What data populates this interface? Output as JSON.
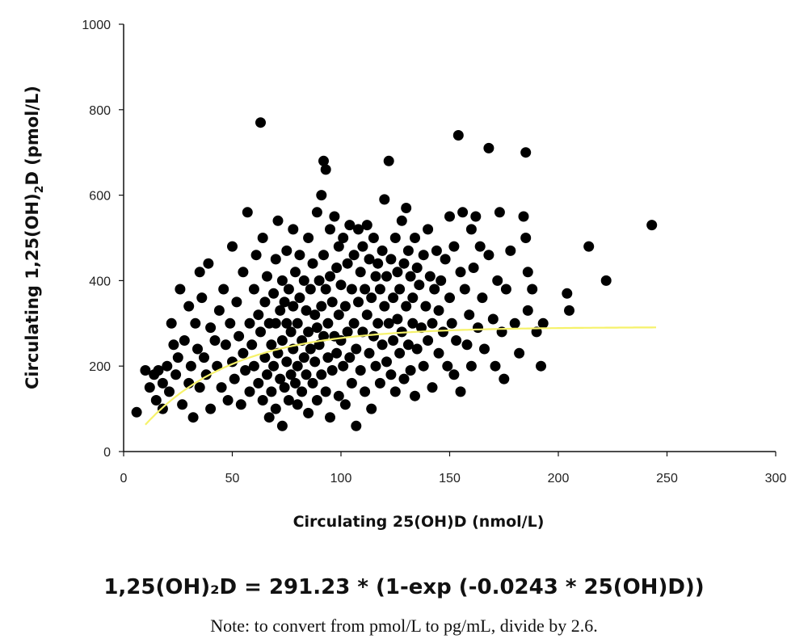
{
  "chart_data": {
    "type": "scatter",
    "xlabel": "Circulating 25(OH)D (nmol/L)",
    "ylabel": "Circulating 1,25(OH)2D (pmol/L)",
    "xlim": [
      0,
      300
    ],
    "ylim": [
      0,
      1000
    ],
    "x_ticks": [
      "0",
      "50",
      "100",
      "150",
      "200",
      "250",
      "300"
    ],
    "y_ticks": [
      "0",
      "200",
      "400",
      "600",
      "800",
      "1000"
    ],
    "grid": false,
    "legend": "none",
    "marker_color": "#000000",
    "fit_line_color": "#f6f26a",
    "fit": {
      "label": "1,25(OH)2D = 291.23 * (1-exp (-0.0243 * 25(OH)D))",
      "a": 291.23,
      "k": 0.0243,
      "x_range": [
        10,
        245
      ]
    },
    "series": [
      {
        "points": [
          [
            6,
            92
          ],
          [
            10,
            190
          ],
          [
            12,
            150
          ],
          [
            14,
            180
          ],
          [
            15,
            120
          ],
          [
            16,
            190
          ],
          [
            18,
            100
          ],
          [
            18,
            160
          ],
          [
            20,
            200
          ],
          [
            21,
            140
          ],
          [
            22,
            300
          ],
          [
            23,
            250
          ],
          [
            24,
            180
          ],
          [
            25,
            220
          ],
          [
            26,
            380
          ],
          [
            27,
            110
          ],
          [
            28,
            260
          ],
          [
            30,
            340
          ],
          [
            30,
            160
          ],
          [
            31,
            200
          ],
          [
            32,
            80
          ],
          [
            33,
            300
          ],
          [
            34,
            240
          ],
          [
            35,
            420
          ],
          [
            35,
            150
          ],
          [
            36,
            360
          ],
          [
            37,
            220
          ],
          [
            38,
            180
          ],
          [
            39,
            440
          ],
          [
            40,
            290
          ],
          [
            40,
            100
          ],
          [
            42,
            260
          ],
          [
            43,
            200
          ],
          [
            44,
            330
          ],
          [
            45,
            150
          ],
          [
            46,
            380
          ],
          [
            47,
            250
          ],
          [
            48,
            120
          ],
          [
            49,
            300
          ],
          [
            50,
            480
          ],
          [
            50,
            210
          ],
          [
            51,
            170
          ],
          [
            52,
            350
          ],
          [
            53,
            270
          ],
          [
            54,
            110
          ],
          [
            55,
            420
          ],
          [
            55,
            230
          ],
          [
            56,
            190
          ],
          [
            57,
            560
          ],
          [
            58,
            300
          ],
          [
            58,
            140
          ],
          [
            59,
            250
          ],
          [
            60,
            380
          ],
          [
            60,
            200
          ],
          [
            61,
            460
          ],
          [
            62,
            320
          ],
          [
            62,
            160
          ],
          [
            63,
            770
          ],
          [
            63,
            280
          ],
          [
            64,
            500
          ],
          [
            64,
            120
          ],
          [
            65,
            350
          ],
          [
            65,
            220
          ],
          [
            66,
            410
          ],
          [
            66,
            180
          ],
          [
            67,
            300
          ],
          [
            67,
            80
          ],
          [
            68,
            250
          ],
          [
            68,
            140
          ],
          [
            69,
            370
          ],
          [
            69,
            200
          ],
          [
            70,
            450
          ],
          [
            70,
            300
          ],
          [
            70,
            100
          ],
          [
            71,
            540
          ],
          [
            71,
            230
          ],
          [
            72,
            330
          ],
          [
            72,
            170
          ],
          [
            73,
            400
          ],
          [
            73,
            260
          ],
          [
            73,
            60
          ],
          [
            74,
            350
          ],
          [
            74,
            150
          ],
          [
            75,
            470
          ],
          [
            75,
            300
          ],
          [
            75,
            210
          ],
          [
            76,
            380
          ],
          [
            76,
            120
          ],
          [
            77,
            280
          ],
          [
            77,
            180
          ],
          [
            78,
            520
          ],
          [
            78,
            340
          ],
          [
            78,
            240
          ],
          [
            79,
            420
          ],
          [
            79,
            160
          ],
          [
            80,
            300
          ],
          [
            80,
            200
          ],
          [
            80,
            110
          ],
          [
            81,
            460
          ],
          [
            81,
            360
          ],
          [
            82,
            260
          ],
          [
            82,
            140
          ],
          [
            83,
            400
          ],
          [
            83,
            220
          ],
          [
            84,
            330
          ],
          [
            84,
            180
          ],
          [
            85,
            500
          ],
          [
            85,
            280
          ],
          [
            85,
            90
          ],
          [
            86,
            380
          ],
          [
            86,
            240
          ],
          [
            87,
            440
          ],
          [
            87,
            160
          ],
          [
            88,
            320
          ],
          [
            88,
            210
          ],
          [
            89,
            560
          ],
          [
            89,
            290
          ],
          [
            89,
            120
          ],
          [
            90,
            400
          ],
          [
            90,
            250
          ],
          [
            91,
            600
          ],
          [
            91,
            340
          ],
          [
            91,
            180
          ],
          [
            92,
            680
          ],
          [
            92,
            460
          ],
          [
            92,
            270
          ],
          [
            93,
            660
          ],
          [
            93,
            380
          ],
          [
            93,
            140
          ],
          [
            94,
            300
          ],
          [
            94,
            220
          ],
          [
            95,
            520
          ],
          [
            95,
            410
          ],
          [
            95,
            80
          ],
          [
            96,
            350
          ],
          [
            96,
            190
          ],
          [
            97,
            550
          ],
          [
            97,
            270
          ],
          [
            98,
            430
          ],
          [
            98,
            230
          ],
          [
            99,
            480
          ],
          [
            99,
            320
          ],
          [
            99,
            130
          ],
          [
            100,
            390
          ],
          [
            100,
            260
          ],
          [
            101,
            500
          ],
          [
            101,
            200
          ],
          [
            102,
            340
          ],
          [
            102,
            110
          ],
          [
            103,
            440
          ],
          [
            103,
            280
          ],
          [
            104,
            530
          ],
          [
            104,
            220
          ],
          [
            105,
            380
          ],
          [
            105,
            160
          ],
          [
            106,
            460
          ],
          [
            106,
            300
          ],
          [
            107,
            240
          ],
          [
            107,
            60
          ],
          [
            108,
            520
          ],
          [
            108,
            350
          ],
          [
            109,
            420
          ],
          [
            109,
            190
          ],
          [
            110,
            480
          ],
          [
            110,
            280
          ],
          [
            111,
            380
          ],
          [
            111,
            140
          ],
          [
            112,
            530
          ],
          [
            112,
            320
          ],
          [
            113,
            450
          ],
          [
            113,
            230
          ],
          [
            114,
            360
          ],
          [
            114,
            100
          ],
          [
            115,
            500
          ],
          [
            115,
            270
          ],
          [
            116,
            410
          ],
          [
            116,
            200
          ],
          [
            117,
            440
          ],
          [
            117,
            300
          ],
          [
            118,
            380
          ],
          [
            118,
            160
          ],
          [
            119,
            470
          ],
          [
            119,
            250
          ],
          [
            120,
            590
          ],
          [
            120,
            340
          ],
          [
            121,
            410
          ],
          [
            121,
            210
          ],
          [
            122,
            680
          ],
          [
            122,
            300
          ],
          [
            123,
            450
          ],
          [
            123,
            180
          ],
          [
            124,
            360
          ],
          [
            124,
            260
          ],
          [
            125,
            500
          ],
          [
            125,
            140
          ],
          [
            126,
            420
          ],
          [
            126,
            310
          ],
          [
            127,
            380
          ],
          [
            127,
            230
          ],
          [
            128,
            540
          ],
          [
            128,
            280
          ],
          [
            129,
            440
          ],
          [
            129,
            170
          ],
          [
            130,
            570
          ],
          [
            130,
            340
          ],
          [
            131,
            470
          ],
          [
            131,
            250
          ],
          [
            132,
            410
          ],
          [
            132,
            190
          ],
          [
            133,
            360
          ],
          [
            133,
            300
          ],
          [
            134,
            500
          ],
          [
            134,
            130
          ],
          [
            135,
            430
          ],
          [
            135,
            240
          ],
          [
            136,
            390
          ],
          [
            137,
            290
          ],
          [
            138,
            460
          ],
          [
            138,
            200
          ],
          [
            139,
            340
          ],
          [
            140,
            520
          ],
          [
            140,
            260
          ],
          [
            141,
            410
          ],
          [
            142,
            300
          ],
          [
            142,
            150
          ],
          [
            143,
            380
          ],
          [
            144,
            470
          ],
          [
            145,
            230
          ],
          [
            145,
            330
          ],
          [
            146,
            400
          ],
          [
            147,
            280
          ],
          [
            148,
            450
          ],
          [
            149,
            200
          ],
          [
            150,
            550
          ],
          [
            150,
            360
          ],
          [
            151,
            300
          ],
          [
            152,
            480
          ],
          [
            152,
            180
          ],
          [
            153,
            260
          ],
          [
            154,
            740
          ],
          [
            155,
            420
          ],
          [
            155,
            140
          ],
          [
            156,
            560
          ],
          [
            157,
            380
          ],
          [
            158,
            250
          ],
          [
            159,
            320
          ],
          [
            160,
            520
          ],
          [
            160,
            200
          ],
          [
            161,
            430
          ],
          [
            162,
            550
          ],
          [
            163,
            290
          ],
          [
            164,
            480
          ],
          [
            165,
            360
          ],
          [
            166,
            240
          ],
          [
            168,
            710
          ],
          [
            168,
            460
          ],
          [
            170,
            310
          ],
          [
            171,
            200
          ],
          [
            172,
            400
          ],
          [
            173,
            560
          ],
          [
            174,
            280
          ],
          [
            175,
            170
          ],
          [
            176,
            380
          ],
          [
            178,
            470
          ],
          [
            180,
            300
          ],
          [
            182,
            230
          ],
          [
            184,
            550
          ],
          [
            185,
            700
          ],
          [
            185,
            500
          ],
          [
            186,
            420
          ],
          [
            186,
            330
          ],
          [
            188,
            380
          ],
          [
            190,
            280
          ],
          [
            192,
            200
          ],
          [
            193,
            300
          ],
          [
            204,
            370
          ],
          [
            205,
            330
          ],
          [
            214,
            480
          ],
          [
            222,
            400
          ],
          [
            243,
            530
          ]
        ]
      }
    ]
  },
  "equation": {
    "text": "1,25(OH)₂D = 291.23 * (1-exp (-0.0243 * 25(OH)D))"
  },
  "note": {
    "text": "Note: to convert from pmol/L to pg/mL, divide by 2.6."
  }
}
